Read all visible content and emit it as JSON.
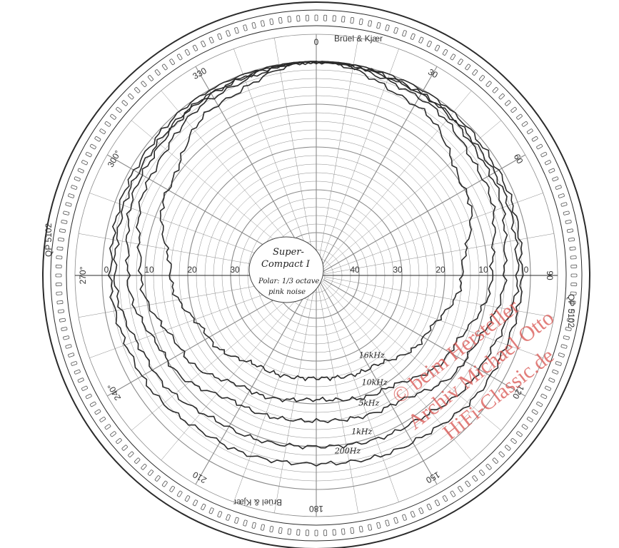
{
  "header": {
    "brand": "Brüel & Kjær",
    "brand_mirrored": "Brüel & Kjær",
    "paper_code_left": "QP 5102",
    "paper_code_right": "QP 5102"
  },
  "center_note": {
    "line1": "Super-",
    "line2": "Compact I",
    "line3": "Polar: 1/3 octave",
    "line4": "pink noise"
  },
  "watermark": {
    "line1": "© beim Hersteller",
    "line2": "Archiv Michael Otto",
    "line3": "HiFi-Classic.de"
  },
  "colors": {
    "ink": "#2b2b2b",
    "grid": "#8a8a8a",
    "watermark": "#d9534f"
  },
  "chart_data": {
    "type": "polar",
    "angular_unit": "degrees",
    "radial_unit": "dB",
    "angle_ticks": [
      {
        "angle": 0,
        "label": "0"
      },
      {
        "angle": 30,
        "label": "30"
      },
      {
        "angle": 60,
        "label": "60"
      },
      {
        "angle": 90,
        "label": "90"
      },
      {
        "angle": 120,
        "label": "120"
      },
      {
        "angle": 150,
        "label": "150"
      },
      {
        "angle": 180,
        "label": "180"
      },
      {
        "angle": 210,
        "label": "210"
      },
      {
        "angle": 240,
        "label": "240°"
      },
      {
        "angle": 270,
        "label": "270°"
      },
      {
        "angle": 300,
        "label": "300°"
      },
      {
        "angle": 330,
        "label": "330"
      }
    ],
    "radial_ticks": [
      {
        "value": 0,
        "label": "0"
      },
      {
        "value": 10,
        "label": "10"
      },
      {
        "value": 20,
        "label": "20"
      },
      {
        "value": 30,
        "label": "30"
      },
      {
        "value": 40,
        "label": "40"
      }
    ],
    "series": [
      {
        "name": "200Hz",
        "angles": [
          0,
          30,
          60,
          90,
          120,
          150,
          180,
          210,
          240,
          270,
          300,
          330
        ],
        "values": [
          0,
          0,
          1,
          2,
          3,
          5,
          6,
          5,
          3,
          2,
          1,
          0
        ]
      },
      {
        "name": "1kHz",
        "angles": [
          0,
          30,
          60,
          90,
          120,
          150,
          180,
          210,
          240,
          270,
          300,
          330
        ],
        "values": [
          0,
          1,
          2,
          3,
          6,
          9,
          10,
          9,
          6,
          3,
          2,
          1
        ]
      },
      {
        "name": "5kHz",
        "angles": [
          0,
          30,
          60,
          90,
          120,
          150,
          180,
          210,
          240,
          270,
          300,
          330
        ],
        "values": [
          0,
          1,
          3,
          6,
          10,
          15,
          16,
          15,
          10,
          6,
          3,
          1
        ]
      },
      {
        "name": "10kHz",
        "angles": [
          0,
          30,
          60,
          90,
          120,
          150,
          180,
          210,
          240,
          270,
          300,
          330
        ],
        "values": [
          0,
          2,
          5,
          9,
          14,
          19,
          21,
          19,
          14,
          9,
          5,
          2
        ]
      },
      {
        "name": "16kHz",
        "angles": [
          0,
          30,
          60,
          90,
          120,
          150,
          180,
          210,
          240,
          270,
          300,
          330
        ],
        "values": [
          0,
          4,
          10,
          16,
          21,
          25,
          26,
          25,
          21,
          16,
          10,
          4
        ]
      }
    ]
  }
}
